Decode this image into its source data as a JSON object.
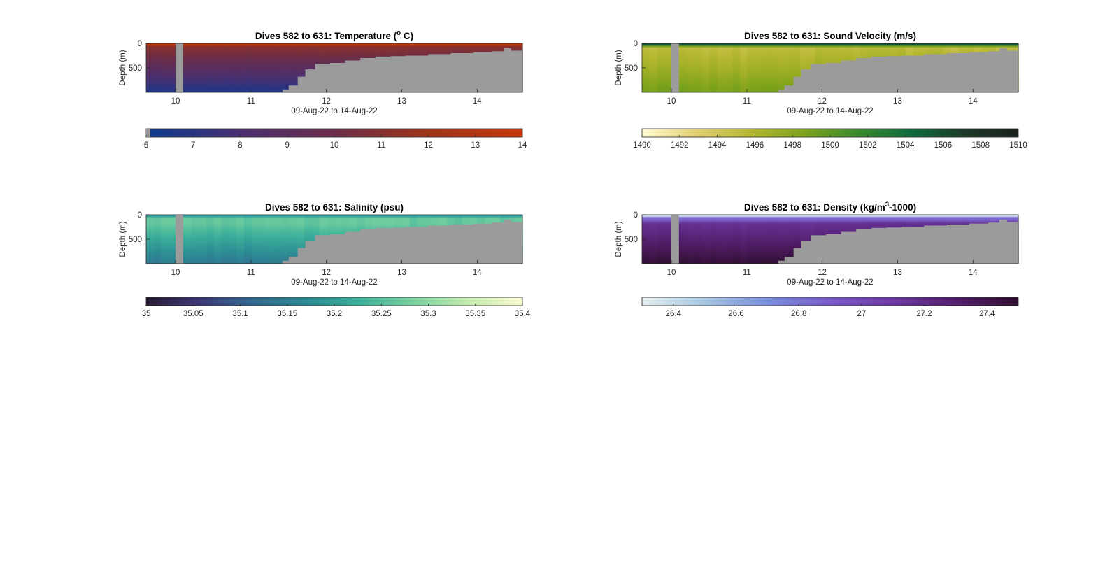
{
  "figure": {
    "background": "#ffffff",
    "mask_color": "#9b9b9b"
  },
  "chart_data": [
    {
      "type": "heatmap",
      "variable": "temperature",
      "title": "Dives 582 to 631: Temperature (",
      "title_sup": "o",
      "title_end": " C)",
      "xlabel": "09-Aug-22 to 14-Aug-22",
      "ylabel": "Depth (m)",
      "xlim": [
        9.61,
        14.6
      ],
      "ylim": [
        1000,
        0
      ],
      "x_ticks": [
        "10",
        "11",
        "12",
        "13",
        "14"
      ],
      "y_ticks": [
        "0",
        "500"
      ],
      "colorbar": {
        "range": [
          6,
          14
        ],
        "ticks": [
          "6",
          "7",
          "8",
          "9",
          "10",
          "11",
          "12",
          "13",
          "14"
        ],
        "colors": [
          "#0a3a8f",
          "#4a2f70",
          "#6a2d4a",
          "#9e3418",
          "#c8360a"
        ]
      },
      "column_gap": [
        10.0,
        10.1
      ]
    },
    {
      "type": "heatmap",
      "variable": "sound_velocity",
      "title": "Dives 582 to 631: Sound Velocity (m/s)",
      "title_sup": "",
      "title_end": "",
      "xlabel": "09-Aug-22 to 14-Aug-22",
      "ylabel": "Depth (m)",
      "xlim": [
        9.61,
        14.6
      ],
      "ylim": [
        1000,
        0
      ],
      "x_ticks": [
        "10",
        "11",
        "12",
        "13",
        "14"
      ],
      "y_ticks": [
        "0",
        "500"
      ],
      "colorbar": {
        "range": [
          1490,
          1510
        ],
        "ticks": [
          "1490",
          "1492",
          "1494",
          "1496",
          "1498",
          "1500",
          "1502",
          "1504",
          "1506",
          "1508",
          "1510"
        ],
        "colors": [
          "#fffad2",
          "#e2cf73",
          "#b4b72e",
          "#7ea31a",
          "#3a8a2e",
          "#0e6b3c",
          "#1d3a2a",
          "#1a1f1a"
        ]
      },
      "column_gap": [
        10.0,
        10.1
      ]
    },
    {
      "type": "heatmap",
      "variable": "salinity",
      "title": "Dives 582 to 631: Salinity (psu)",
      "title_sup": "",
      "title_end": "",
      "xlabel": "09-Aug-22 to 14-Aug-22",
      "ylabel": "Depth (m)",
      "xlim": [
        9.61,
        14.6
      ],
      "ylim": [
        1000,
        0
      ],
      "x_ticks": [
        "10",
        "11",
        "12",
        "13",
        "14"
      ],
      "y_ticks": [
        "0",
        "500"
      ],
      "colorbar": {
        "range": [
          35,
          35.4
        ],
        "ticks": [
          "35",
          "35.05",
          "35.1",
          "35.15",
          "35.2",
          "35.25",
          "35.3",
          "35.35",
          "35.4"
        ],
        "colors": [
          "#291b33",
          "#3e3a78",
          "#336a8e",
          "#2c8c94",
          "#3db29a",
          "#7dd3a0",
          "#c6ecb0",
          "#fbfbd2"
        ]
      },
      "column_gap": [
        10.0,
        10.1
      ]
    },
    {
      "type": "heatmap",
      "variable": "density",
      "title": "Dives 582 to 631: Density (kg/m",
      "title_sup": "3",
      "title_end": "-1000)",
      "xlabel": "09-Aug-22 to 14-Aug-22",
      "ylabel": "Depth (m)",
      "xlim": [
        9.61,
        14.6
      ],
      "ylim": [
        1000,
        0
      ],
      "x_ticks": [
        "10",
        "11",
        "12",
        "13",
        "14"
      ],
      "y_ticks": [
        "0",
        "500"
      ],
      "colorbar": {
        "range": [
          26.3,
          27.5
        ],
        "ticks": [
          "26.4",
          "26.6",
          "26.8",
          "27",
          "27.2",
          "27.4"
        ],
        "colors": [
          "#e6f0f0",
          "#a7c8e2",
          "#7a8fde",
          "#7b5ccb",
          "#6e3aa6",
          "#55206e",
          "#2f0e2f"
        ]
      },
      "column_gap": [
        10.0,
        10.1
      ]
    }
  ]
}
